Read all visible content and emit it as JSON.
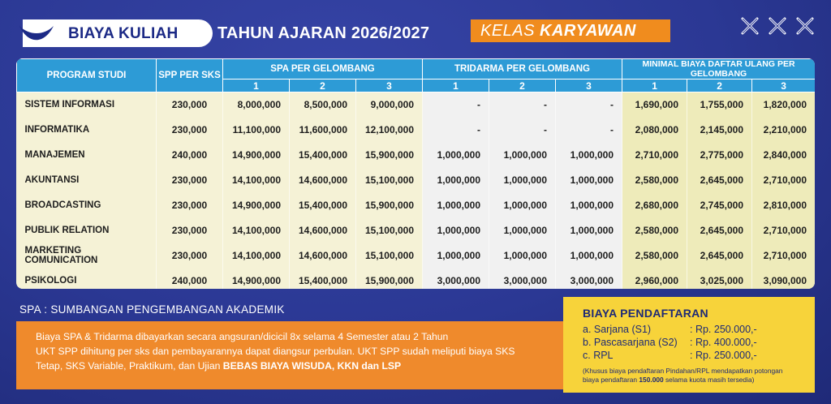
{
  "header": {
    "title": "BIAYA KULIAH",
    "tahun": "TAHUN AJARAN 2026/2027",
    "kelas_prefix": "KELAS",
    "kelas_bold": "KARYAWAN"
  },
  "table": {
    "headers": {
      "program": "PROGRAM STUDI",
      "spp": "SPP PER SKS",
      "spa": "SPA PER GELOMBANG",
      "tridarma": "TRIDARMA PER GELOMBANG",
      "daftar_ulang": "MINIMAL BIAYA DAFTAR ULANG PER GELOMBANG",
      "g1": "1",
      "g2": "2",
      "g3": "3"
    },
    "rows": [
      {
        "program": "SISTEM INFORMASI",
        "spp": "230,000",
        "spa": [
          "8,000,000",
          "8,500,000",
          "9,000,000"
        ],
        "tri": [
          "-",
          "-",
          "-"
        ],
        "du": [
          "1,690,000",
          "1,755,000",
          "1,820,000"
        ]
      },
      {
        "program": "INFORMATIKA",
        "spp": "230,000",
        "spa": [
          "11,100,000",
          "11,600,000",
          "12,100,000"
        ],
        "tri": [
          "-",
          "-",
          "-"
        ],
        "du": [
          "2,080,000",
          "2,145,000",
          "2,210,000"
        ]
      },
      {
        "program": "MANAJEMEN",
        "spp": "240,000",
        "spa": [
          "14,900,000",
          "15,400,000",
          "15,900,000"
        ],
        "tri": [
          "1,000,000",
          "1,000,000",
          "1,000,000"
        ],
        "du": [
          "2,710,000",
          "2,775,000",
          "2,840,000"
        ]
      },
      {
        "program": "AKUNTANSI",
        "spp": "230,000",
        "spa": [
          "14,100,000",
          "14,600,000",
          "15,100,000"
        ],
        "tri": [
          "1,000,000",
          "1,000,000",
          "1,000,000"
        ],
        "du": [
          "2,580,000",
          "2,645,000",
          "2,710,000"
        ]
      },
      {
        "program": "BROADCASTING",
        "spp": "230,000",
        "spa": [
          "14,900,000",
          "15,400,000",
          "15,900,000"
        ],
        "tri": [
          "1,000,000",
          "1,000,000",
          "1,000,000"
        ],
        "du": [
          "2,680,000",
          "2,745,000",
          "2,810,000"
        ]
      },
      {
        "program": "PUBLIK RELATION",
        "spp": "230,000",
        "spa": [
          "14,100,000",
          "14,600,000",
          "15,100,000"
        ],
        "tri": [
          "1,000,000",
          "1,000,000",
          "1,000,000"
        ],
        "du": [
          "2,580,000",
          "2,645,000",
          "2,710,000"
        ]
      },
      {
        "program": "MARKETING COMUNICATION",
        "spp": "230,000",
        "spa": [
          "14,100,000",
          "14,600,000",
          "15,100,000"
        ],
        "tri": [
          "1,000,000",
          "1,000,000",
          "1,000,000"
        ],
        "du": [
          "2,580,000",
          "2,645,000",
          "2,710,000"
        ]
      },
      {
        "program": "PSIKOLOGI",
        "spp": "240,000",
        "spa": [
          "14,900,000",
          "15,400,000",
          "15,900,000"
        ],
        "tri": [
          "3,000,000",
          "3,000,000",
          "3,000,000"
        ],
        "du": [
          "2,960,000",
          "3,025,000",
          "3,090,000"
        ]
      }
    ]
  },
  "spa_note": "SPA : SUMBANGAN PENGEMBANGAN AKADEMIK",
  "info": {
    "line1": "Biaya SPA & Tridarma dibayarkan secara angsuran/dicicil 8x selama 4 Semester atau 2 Tahun",
    "line2": "UKT SPP dihitung per sks dan pembayarannya dapat diangsur perbulan. UKT SPP sudah meliputi biaya SKS",
    "line3_pre": "Tetap, SKS Variable, Praktikum, dan Ujian ",
    "line3_bold": "BEBAS BIAYA WISUDA, KKN dan LSP"
  },
  "registration": {
    "title": "BIAYA PENDAFTARAN",
    "items": [
      {
        "label": "a. Sarjana (S1)",
        "value": ": Rp. 250.000,-"
      },
      {
        "label": "b. Pascasarjana (S2)",
        "value": ": Rp. 400.000,-"
      },
      {
        "label": "c. RPL",
        "value": ": Rp. 250.000,-"
      }
    ],
    "note_line1": "(Khusus biaya pendaftaran Pindahan/RPL mendapatkan potongan",
    "note_line2_pre": "biaya pendaftaran ",
    "note_line2_bold": "150.000",
    "note_line2_post": " selama kuota masih tersedia)"
  },
  "colors": {
    "background": "#2b3894",
    "header_blue": "#2d9bd6",
    "orange": "#ef8a2c",
    "yellow": "#f7d33a"
  }
}
